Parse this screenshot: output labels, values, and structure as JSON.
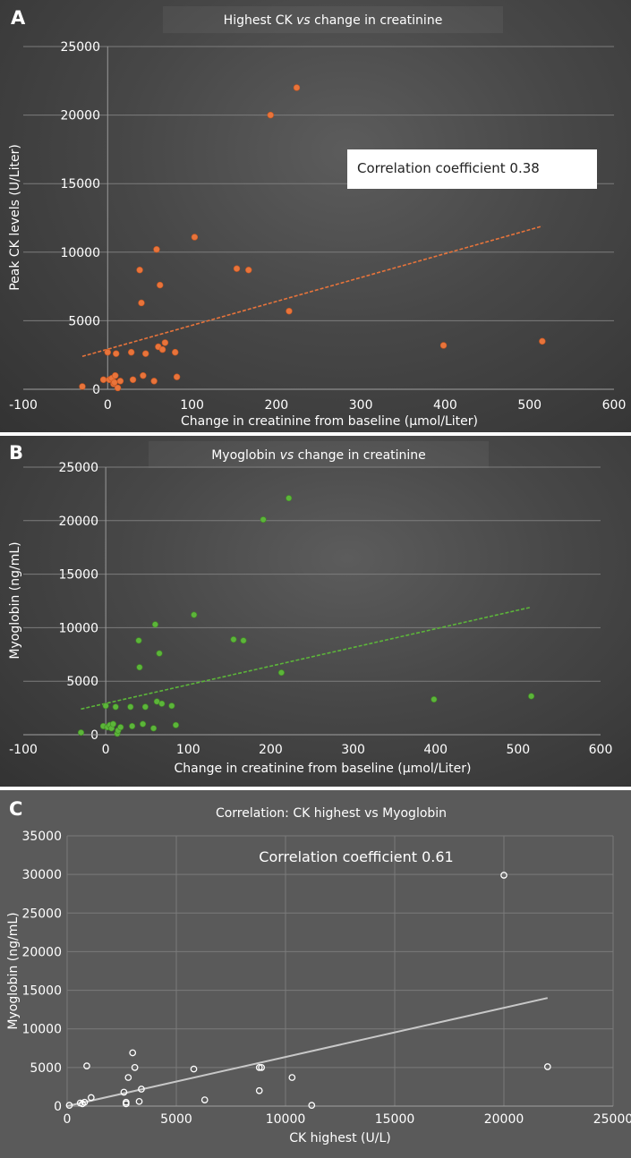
{
  "chart_data": [
    {
      "id": "A",
      "panel_label": "A",
      "type": "scatter",
      "title_parts": [
        "Highest CK ",
        "vs",
        " change in creatinine"
      ],
      "xlabel_parts": [
        "Change in creatinine from baseline (",
        "μ",
        "mol/Liter)"
      ],
      "ylabel": "Peak CK levels (U/Liter)",
      "xlim": [
        -100,
        600
      ],
      "ylim": [
        0,
        25000
      ],
      "xticks": [
        -100,
        0,
        100,
        200,
        300,
        400,
        500,
        600
      ],
      "xtick_labels": [
        "-100",
        "0",
        "100",
        "200",
        "300",
        "400",
        "500",
        "600"
      ],
      "yticks": [
        0,
        5000,
        10000,
        15000,
        20000,
        25000
      ],
      "ytick_labels": [
        "0",
        "5000",
        "10000",
        "15000",
        "20000",
        "25000"
      ],
      "annotation": "Correlation coefficient 0.38",
      "marker_color": "#e8743b",
      "trendline_color": "#e8743b",
      "trendline": {
        "x": [
          -30,
          515
        ],
        "y": [
          2400,
          11900
        ]
      },
      "points": {
        "x": [
          -30,
          -5,
          0,
          2,
          5,
          7,
          8,
          9,
          10,
          12,
          15,
          28,
          30,
          38,
          40,
          42,
          45,
          55,
          58,
          60,
          62,
          65,
          68,
          80,
          82,
          103,
          153,
          167,
          215,
          193,
          224,
          398,
          515
        ],
        "y": [
          200,
          700,
          2700,
          700,
          800,
          400,
          500,
          1000,
          2600,
          100,
          600,
          2700,
          700,
          8700,
          6300,
          1000,
          2600,
          600,
          10200,
          3100,
          7600,
          2900,
          3400,
          2700,
          900,
          11100,
          8800,
          8700,
          5700,
          20000,
          22000,
          3200,
          3500
        ]
      }
    },
    {
      "id": "B",
      "panel_label": "B",
      "type": "scatter",
      "title_parts": [
        "Myoglobin ",
        "vs",
        " change in creatinine"
      ],
      "xlabel_parts": [
        "Change in creatinine from baseline (",
        "μ",
        "mol/Liter)"
      ],
      "ylabel": "Myoglobin (ng/mL)",
      "xlim": [
        -100,
        600
      ],
      "ylim": [
        0,
        25000
      ],
      "xticks": [
        -100,
        0,
        100,
        200,
        300,
        400,
        500,
        600
      ],
      "xtick_labels": [
        "-100",
        "0",
        "100",
        "200",
        "300",
        "400",
        "500",
        "600"
      ],
      "yticks": [
        0,
        5000,
        10000,
        15000,
        20000,
        25000
      ],
      "ytick_labels": [
        "0",
        "5000",
        "10000",
        "15000",
        "20000",
        "25000"
      ],
      "marker_color": "#5cb53a",
      "trendline_color": "#5cb53a",
      "trendline": {
        "x": [
          -30,
          515
        ],
        "y": [
          2400,
          11900
        ]
      },
      "points": {
        "x": [
          -30,
          -3,
          0,
          2,
          5,
          7,
          9,
          12,
          14,
          15,
          18,
          30,
          32,
          40,
          41,
          45,
          48,
          58,
          60,
          62,
          65,
          68,
          80,
          85,
          107,
          155,
          167,
          213,
          191,
          222,
          398,
          516
        ],
        "y": [
          200,
          800,
          2700,
          700,
          900,
          600,
          1000,
          2600,
          100,
          400,
          700,
          2600,
          800,
          8800,
          6300,
          1000,
          2600,
          600,
          10300,
          3100,
          7600,
          2900,
          2700,
          900,
          11200,
          8900,
          8800,
          5800,
          20100,
          22100,
          3300,
          3600
        ]
      }
    },
    {
      "id": "C",
      "panel_label": "C",
      "type": "scatter",
      "title": "Correlation: CK highest vs Myoglobin",
      "xlabel": "CK highest (U/L)",
      "ylabel": "Myoglobin (ng/mL)",
      "xlim": [
        0,
        25000
      ],
      "ylim": [
        0,
        35000
      ],
      "xticks": [
        0,
        5000,
        10000,
        15000,
        20000,
        25000
      ],
      "xtick_labels": [
        "0",
        "5000",
        "10000",
        "15000",
        "20000",
        "25000"
      ],
      "yticks": [
        0,
        5000,
        10000,
        15000,
        20000,
        25000,
        30000,
        35000
      ],
      "ytick_labels": [
        "0",
        "5000",
        "10000",
        "15000",
        "20000",
        "25000",
        "30000",
        "35000"
      ],
      "annotation": "Correlation coefficient  0.61",
      "marker_color": "#ffffff",
      "trendline_color": "#c8c8c8",
      "trendline": {
        "x": [
          0,
          22000
        ],
        "y": [
          0,
          14000
        ]
      },
      "points": {
        "x": [
          100,
          600,
          700,
          800,
          900,
          1100,
          2600,
          2700,
          2700,
          2800,
          3000,
          3100,
          3300,
          3400,
          5800,
          6300,
          8800,
          8900,
          8800,
          10300,
          11200,
          20000,
          22000
        ],
        "y": [
          100,
          400,
          300,
          500,
          5200,
          1100,
          1800,
          300,
          500,
          3700,
          6900,
          5000,
          600,
          2200,
          4800,
          800,
          5000,
          5000,
          2000,
          3700,
          100,
          29900,
          5100
        ]
      }
    }
  ]
}
